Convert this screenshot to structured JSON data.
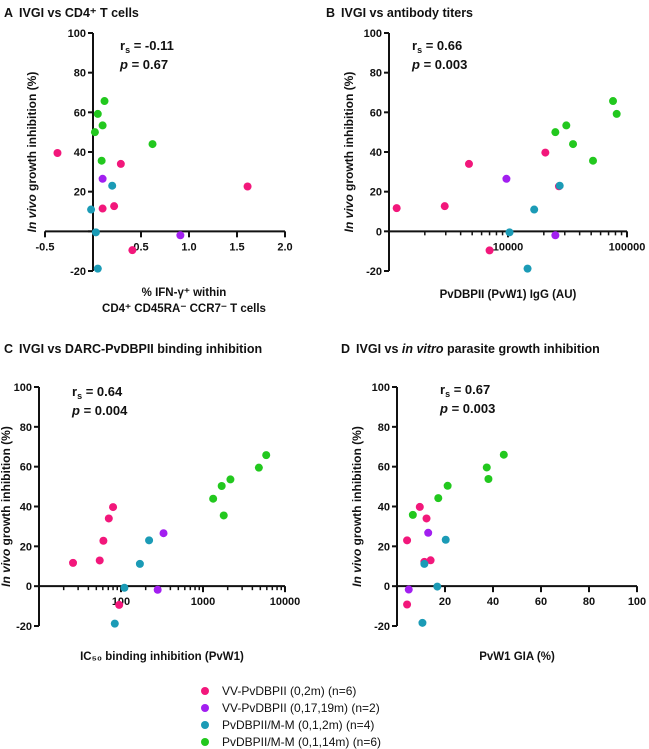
{
  "colors": {
    "pink": "#f2177b",
    "purple": "#a21ff0",
    "teal": "#1b9bb6",
    "green": "#22c81e"
  },
  "legend": [
    {
      "label": "VV-PvDBPII (0,2m) (n=6)",
      "color": "pink"
    },
    {
      "label": "VV-PvDBPII (0,17,19m) (n=2)",
      "color": "purple"
    },
    {
      "label": "PvDBPII/M-M (0,1,2m) (n=4)",
      "color": "teal"
    },
    {
      "label": "PvDBPII/M-M (0,1,14m) (n=6)",
      "color": "green"
    }
  ],
  "chart_data": [
    {
      "type": "scatter",
      "letter": "A",
      "title": "IVGI vs CD4⁺ T cells",
      "title_italic": "",
      "title_after": "",
      "stat_r": "r",
      "stat_r_sub": "s",
      "rs": " = -0.11",
      "stat_p": "p",
      "p": " = 0.67",
      "ylabel_italic": "In vivo",
      "ylabel": " growth inhibition (%)",
      "xlabel": [
        "% IFN-γ⁺ within",
        "CD4⁺ CD45RA⁻ CCR7⁻ T cells"
      ],
      "xscale": "linear",
      "xlim": [
        -0.5,
        2.0
      ],
      "ylim": [
        -20,
        100
      ],
      "x_ticks": [
        {
          "value": -0.5,
          "label": "-0.5"
        },
        {
          "value": 0.0,
          "label": ""
        },
        {
          "value": 0.5,
          "label": "0.5"
        },
        {
          "value": 1.0,
          "label": "1.0"
        },
        {
          "value": 1.5,
          "label": "1.5"
        },
        {
          "value": 2.0,
          "label": "2.0"
        }
      ],
      "y_ticks": [
        {
          "value": -20,
          "label": "-20"
        },
        {
          "value": 0,
          "label": ""
        },
        {
          "value": 20,
          "label": "20"
        },
        {
          "value": 40,
          "label": "40"
        },
        {
          "value": 60,
          "label": "60"
        },
        {
          "value": 80,
          "label": "80"
        },
        {
          "value": 100,
          "label": "100"
        }
      ],
      "series": [
        {
          "name": "VV-PvDBPII (0,2m)",
          "color": "pink",
          "points": [
            [
              -0.37,
              39.5
            ],
            [
              0.29,
              34
            ],
            [
              1.61,
              22.6
            ],
            [
              0.1,
              11.5
            ],
            [
              0.22,
              12.7
            ],
            [
              0.41,
              -9.5
            ]
          ]
        },
        {
          "name": "VV-PvDBPII (0,17,19m)",
          "color": "purple",
          "points": [
            [
              0.1,
              26.5
            ],
            [
              0.91,
              -2
            ]
          ]
        },
        {
          "name": "PvDBPII/M-M (0,1,2m)",
          "color": "teal",
          "points": [
            [
              0.2,
              23
            ],
            [
              -0.02,
              11
            ],
            [
              0.03,
              -0.5
            ],
            [
              0.05,
              -18.8
            ]
          ]
        },
        {
          "name": "PvDBPII/M-M (0,1,14m)",
          "color": "green",
          "points": [
            [
              0.12,
              65.7
            ],
            [
              0.05,
              59.2
            ],
            [
              0.1,
              53.4
            ],
            [
              0.02,
              50
            ],
            [
              0.62,
              44
            ],
            [
              0.09,
              35.6
            ]
          ]
        }
      ]
    },
    {
      "type": "scatter",
      "letter": "B",
      "title": "IVGI vs antibody titers",
      "title_italic": "",
      "title_after": "",
      "stat_r": "r",
      "stat_r_sub": "s",
      "rs": " = 0.66",
      "stat_p": "p",
      "p": " = 0.003",
      "ylabel_italic": "In vivo",
      "ylabel": " growth inhibition (%)",
      "xlabel": [
        "PvDBPII (PvW1) IgG (AU)"
      ],
      "xscale": "log",
      "xlim": [
        1000,
        100000
      ],
      "ylim": [
        -20,
        100
      ],
      "x_ticks": [
        {
          "value": 10000,
          "label": "10000"
        },
        {
          "value": 100000,
          "label": "100000"
        }
      ],
      "y_ticks": [
        {
          "value": -20,
          "label": "-20"
        },
        {
          "value": 0,
          "label": "0"
        },
        {
          "value": 20,
          "label": "20"
        },
        {
          "value": 40,
          "label": "40"
        },
        {
          "value": 60,
          "label": "60"
        },
        {
          "value": 80,
          "label": "80"
        },
        {
          "value": 100,
          "label": "100"
        }
      ],
      "series": [
        {
          "name": "VV-PvDBPII (0,2m)",
          "color": "pink",
          "points": [
            [
              1160,
              11.7
            ],
            [
              2940,
              12.7
            ],
            [
              4700,
              34
            ],
            [
              7000,
              -9.6
            ],
            [
              20600,
              39.7
            ],
            [
              26800,
              22.7
            ]
          ]
        },
        {
          "name": "VV-PvDBPII (0,17,19m)",
          "color": "purple",
          "points": [
            [
              9700,
              26.5
            ],
            [
              25000,
              -2
            ]
          ]
        },
        {
          "name": "PvDBPII/M-M (0,1,2m)",
          "color": "teal",
          "points": [
            [
              27200,
              23
            ],
            [
              16600,
              11
            ],
            [
              10300,
              -0.5
            ],
            [
              14600,
              -18.8
            ]
          ]
        },
        {
          "name": "PvDBPII/M-M (0,1,14m)",
          "color": "green",
          "points": [
            [
              76300,
              65.7
            ],
            [
              81900,
              59.2
            ],
            [
              30900,
              53.4
            ],
            [
              25000,
              50
            ],
            [
              35200,
              44
            ],
            [
              51800,
              35.6
            ]
          ]
        }
      ]
    },
    {
      "type": "scatter",
      "letter": "C",
      "title": "IVGI vs DARC-PvDBPII binding inhibition",
      "title_italic": "",
      "title_after": "",
      "stat_r": "r",
      "stat_r_sub": "s",
      "rs": " = 0.64",
      "stat_p": "p",
      "p": " = 0.004",
      "ylabel_italic": "In vivo",
      "ylabel": " growth inhibition (%)",
      "xlabel": [
        "IC₅₀ binding inhibition (PvW1)"
      ],
      "xscale": "log",
      "xlim": [
        10,
        10000
      ],
      "ylim": [
        -20,
        100
      ],
      "x_ticks": [
        {
          "value": 100,
          "label": "100"
        },
        {
          "value": 1000,
          "label": "1000"
        },
        {
          "value": 10000,
          "label": "10000"
        }
      ],
      "y_ticks": [
        {
          "value": -20,
          "label": "-20"
        },
        {
          "value": 0,
          "label": "0"
        },
        {
          "value": 20,
          "label": "20"
        },
        {
          "value": 40,
          "label": "40"
        },
        {
          "value": 60,
          "label": "60"
        },
        {
          "value": 80,
          "label": "80"
        },
        {
          "value": 100,
          "label": "100"
        }
      ],
      "series": [
        {
          "name": "VV-PvDBPII (0,2m)",
          "color": "pink",
          "points": [
            [
              26,
              11.7
            ],
            [
              55,
              12.9
            ],
            [
              61,
              22.8
            ],
            [
              71,
              34
            ],
            [
              80,
              39.7
            ],
            [
              95,
              -9.4
            ]
          ]
        },
        {
          "name": "VV-PvDBPII (0,17,19m)",
          "color": "purple",
          "points": [
            [
              330,
              26.6
            ],
            [
              280,
              -1.8
            ]
          ]
        },
        {
          "name": "PvDBPII/M-M (0,1,2m)",
          "color": "teal",
          "points": [
            [
              220,
              23
            ],
            [
              170,
              11.2
            ],
            [
              110,
              -0.8
            ],
            [
              84,
              -18.8
            ]
          ]
        },
        {
          "name": "PvDBPII/M-M (0,1,14m)",
          "color": "green",
          "points": [
            [
              5900,
              65.8
            ],
            [
              4800,
              59.5
            ],
            [
              2160,
              53.6
            ],
            [
              1690,
              50.3
            ],
            [
              1330,
              43.9
            ],
            [
              1790,
              35.5
            ]
          ]
        }
      ]
    },
    {
      "type": "scatter",
      "letter": "D",
      "title": "IVGI vs ",
      "title_italic": "in vitro",
      "title_after": " parasite growth inhibition",
      "stat_r": "r",
      "stat_r_sub": "s",
      "rs": " = 0.67",
      "stat_p": "p",
      "p": " = 0.003",
      "ylabel_italic": "In vivo",
      "ylabel": " growth inhibition (%)",
      "xlabel": [
        "PvW1 GIA (%)"
      ],
      "xscale": "linear",
      "xlim": [
        0,
        100
      ],
      "ylim": [
        -20,
        100
      ],
      "x_ticks": [
        {
          "value": 20,
          "label": "20"
        },
        {
          "value": 40,
          "label": "40"
        },
        {
          "value": 60,
          "label": "60"
        },
        {
          "value": 80,
          "label": "80"
        },
        {
          "value": 100,
          "label": "100"
        }
      ],
      "y_ticks": [
        {
          "value": -20,
          "label": "-20"
        },
        {
          "value": 0,
          "label": "0"
        },
        {
          "value": 20,
          "label": "20"
        },
        {
          "value": 40,
          "label": "40"
        },
        {
          "value": 60,
          "label": "60"
        },
        {
          "value": 80,
          "label": "80"
        },
        {
          "value": 100,
          "label": "100"
        }
      ],
      "series": [
        {
          "name": "VV-PvDBPII (0,2m)",
          "color": "pink",
          "points": [
            [
              4.2,
              23
            ],
            [
              9.5,
              39.8
            ],
            [
              12.3,
              34
            ],
            [
              11.4,
              12.2
            ],
            [
              14,
              13
            ],
            [
              4.2,
              -9.2
            ]
          ]
        },
        {
          "name": "VV-PvDBPII (0,17,19m)",
          "color": "purple",
          "points": [
            [
              13,
              26.8
            ],
            [
              4.9,
              -1.7
            ]
          ]
        },
        {
          "name": "PvDBPII/M-M (0,1,2m)",
          "color": "teal",
          "points": [
            [
              20.3,
              23.3
            ],
            [
              11.4,
              11.2
            ],
            [
              16.8,
              -0.2
            ],
            [
              10.6,
              -18.4
            ]
          ]
        },
        {
          "name": "PvDBPII/M-M (0,1,14m)",
          "color": "green",
          "points": [
            [
              44.5,
              66
            ],
            [
              37.4,
              59.6
            ],
            [
              38.1,
              53.8
            ],
            [
              21.1,
              50.4
            ],
            [
              17.2,
              44.2
            ],
            [
              6.6,
              35.8
            ]
          ]
        }
      ]
    }
  ]
}
